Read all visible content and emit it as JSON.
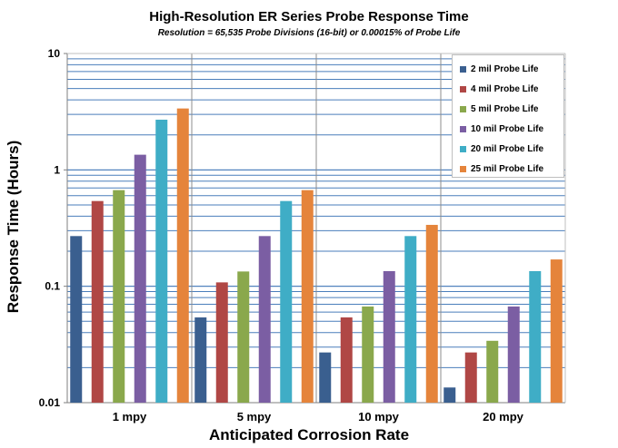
{
  "chart_data": {
    "type": "bar",
    "title": "High-Resolution ER Series Probe Response Time",
    "subtitle": "Resolution = 65,535 Probe Divisions (16-bit) or 0.00015% of Probe Life",
    "xlabel": "Anticipated Corrosion Rate",
    "ylabel": "Response Time (Hours)",
    "yscale": "log",
    "ylim": [
      0.01,
      10
    ],
    "yticks": [
      "0.01",
      "0.1",
      "1",
      "10"
    ],
    "grid": true,
    "legend_position": "top-right",
    "categories": [
      "1 mpy",
      "5 mpy",
      "10 mpy",
      "20 mpy"
    ],
    "series": [
      {
        "name": "2 mil Probe Life",
        "color": "#3a5f8f",
        "values": [
          0.27,
          0.054,
          0.027,
          0.0135
        ]
      },
      {
        "name": "4 mil Probe Life",
        "color": "#b04745",
        "values": [
          0.54,
          0.108,
          0.054,
          0.027
        ]
      },
      {
        "name": "5 mil Probe Life",
        "color": "#8aa84c",
        "values": [
          0.67,
          0.134,
          0.067,
          0.034
        ]
      },
      {
        "name": "10 mil Probe Life",
        "color": "#7b5ea3",
        "values": [
          1.35,
          0.27,
          0.135,
          0.067
        ]
      },
      {
        "name": "20 mil Probe Life",
        "color": "#3fadc6",
        "values": [
          2.7,
          0.54,
          0.27,
          0.135
        ]
      },
      {
        "name": "25 mil Probe Life",
        "color": "#e5843b",
        "values": [
          3.37,
          0.67,
          0.337,
          0.17
        ]
      }
    ]
  }
}
